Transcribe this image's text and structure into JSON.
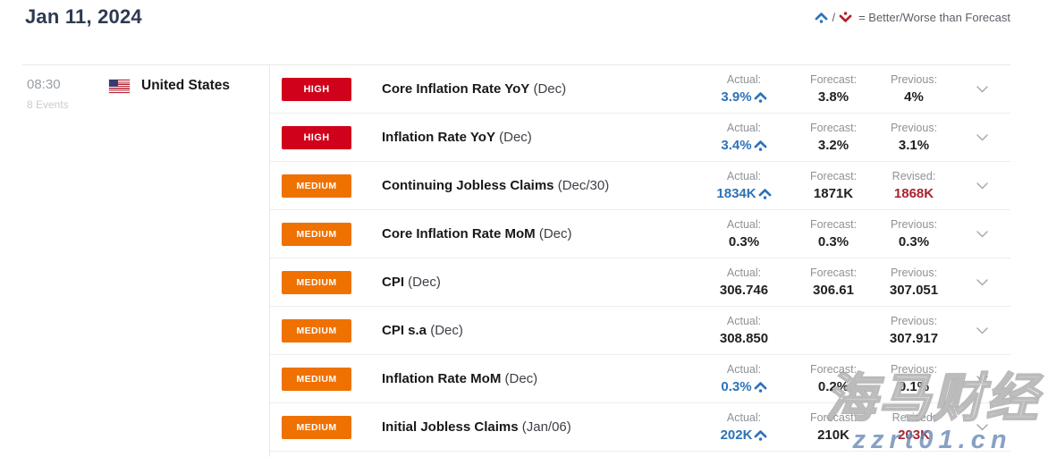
{
  "title": {
    "date": "Jan 11, 2024"
  },
  "legend": {
    "separator": "/",
    "text": "= Better/Worse than Forecast"
  },
  "group": {
    "time": "08:30",
    "events": "8 Events",
    "country": "United States"
  },
  "colors": {
    "high": "#d0021b",
    "medium": "#ef7100",
    "better": "#2d72b9",
    "revised": "#a9222d"
  },
  "rows": [
    {
      "impact": "HIGH",
      "name": "Core Inflation Rate YoY",
      "period": "(Dec)",
      "cols": [
        {
          "label": "Actual:",
          "value": "3.9%",
          "color": "better",
          "arrow": "up"
        },
        {
          "label": "Forecast:",
          "value": "3.8%"
        },
        {
          "label": "Previous:",
          "value": "4%"
        }
      ]
    },
    {
      "impact": "HIGH",
      "name": "Inflation Rate YoY",
      "period": "(Dec)",
      "cols": [
        {
          "label": "Actual:",
          "value": "3.4%",
          "color": "better",
          "arrow": "up"
        },
        {
          "label": "Forecast:",
          "value": "3.2%"
        },
        {
          "label": "Previous:",
          "value": "3.1%"
        }
      ]
    },
    {
      "impact": "MEDIUM",
      "name": "Continuing Jobless Claims",
      "period": "(Dec/30)",
      "cols": [
        {
          "label": "Actual:",
          "value": "1834K",
          "color": "better",
          "arrow": "up"
        },
        {
          "label": "Forecast:",
          "value": "1871K"
        },
        {
          "label": "Revised:",
          "value": "1868K",
          "color": "revised"
        }
      ]
    },
    {
      "impact": "MEDIUM",
      "name": "Core Inflation Rate MoM",
      "period": "(Dec)",
      "cols": [
        {
          "label": "Actual:",
          "value": "0.3%"
        },
        {
          "label": "Forecast:",
          "value": "0.3%"
        },
        {
          "label": "Previous:",
          "value": "0.3%"
        }
      ]
    },
    {
      "impact": "MEDIUM",
      "name": "CPI",
      "period": "(Dec)",
      "cols": [
        {
          "label": "Actual:",
          "value": "306.746"
        },
        {
          "label": "Forecast:",
          "value": "306.61"
        },
        {
          "label": "Previous:",
          "value": "307.051"
        }
      ]
    },
    {
      "impact": "MEDIUM",
      "name": "CPI s.a",
      "period": "(Dec)",
      "cols": [
        {
          "label": "Actual:",
          "value": "308.850"
        },
        {
          "label": "",
          "value": ""
        },
        {
          "label": "Previous:",
          "value": "307.917"
        }
      ]
    },
    {
      "impact": "MEDIUM",
      "name": "Inflation Rate MoM",
      "period": "(Dec)",
      "cols": [
        {
          "label": "Actual:",
          "value": "0.3%",
          "color": "better",
          "arrow": "up"
        },
        {
          "label": "Forecast:",
          "value": "0.2%"
        },
        {
          "label": "Previous:",
          "value": "0.1%"
        }
      ]
    },
    {
      "impact": "MEDIUM",
      "name": "Initial Jobless Claims",
      "period": "(Jan/06)",
      "cols": [
        {
          "label": "Actual:",
          "value": "202K",
          "color": "better",
          "arrow": "up"
        },
        {
          "label": "Forecast:",
          "value": "210K"
        },
        {
          "label": "Revised:",
          "value": "203K",
          "color": "revised"
        }
      ]
    }
  ],
  "watermark": {
    "brand": "海马财经",
    "url": "zzrt01.cn"
  }
}
